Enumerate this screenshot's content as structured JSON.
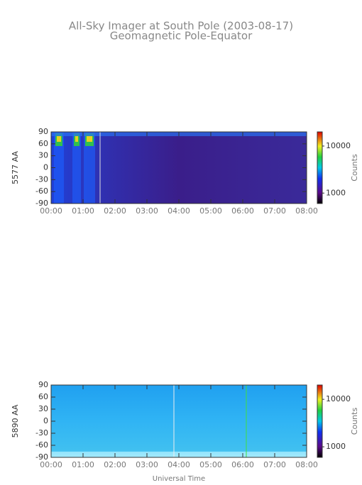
{
  "chart_data": [
    {
      "type": "heatmap",
      "title": "All-Sky Imager at South Pole (2003-08-17)",
      "subtitle": "Geomagnetic Pole-Equator",
      "ylabel": "5577 AA",
      "colorbar_label": "Counts",
      "xlim": [
        0,
        8
      ],
      "xticks": [
        {
          "value": 0,
          "label": "00:00"
        },
        {
          "value": 1,
          "label": "01:00"
        },
        {
          "value": 2,
          "label": "02:00"
        },
        {
          "value": 3,
          "label": "03:00"
        },
        {
          "value": 4,
          "label": "04:00"
        },
        {
          "value": 5,
          "label": "05:00"
        },
        {
          "value": 6,
          "label": "06:00"
        },
        {
          "value": 7,
          "label": "07:00"
        },
        {
          "value": 8,
          "label": "08:00"
        }
      ],
      "ylim": [
        -90,
        90
      ],
      "yticks": [
        -90,
        -60,
        -30,
        0,
        30,
        60,
        90
      ],
      "clim": [
        600,
        20000
      ],
      "cticks": [
        1000,
        10000
      ],
      "log_scale": true,
      "palette": "dark"
    },
    {
      "type": "heatmap",
      "ylabel": "5890 AA",
      "colorbar_label": "Counts",
      "xlabel": "Universal Time",
      "xlim": [
        0,
        8
      ],
      "xticks": [
        {
          "value": 0,
          "label": "00:00"
        },
        {
          "value": 1,
          "label": "01:00"
        },
        {
          "value": 2,
          "label": "02:00"
        },
        {
          "value": 3,
          "label": "03:00"
        },
        {
          "value": 4,
          "label": "04:00"
        },
        {
          "value": 5,
          "label": "05:00"
        },
        {
          "value": 6,
          "label": "06:00"
        },
        {
          "value": 7,
          "label": "07:00"
        },
        {
          "value": 8,
          "label": "08:00"
        }
      ],
      "ylim": [
        -90,
        90
      ],
      "yticks": [
        -90,
        -60,
        -30,
        0,
        30,
        60,
        90
      ],
      "clim": [
        600,
        20000
      ],
      "cticks": [
        1000,
        10000
      ],
      "log_scale": true,
      "palette": "light"
    }
  ]
}
